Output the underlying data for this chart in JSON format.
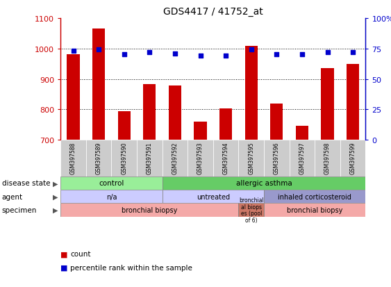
{
  "title": "GDS4417 / 41752_at",
  "samples": [
    "GSM397588",
    "GSM397589",
    "GSM397590",
    "GSM397591",
    "GSM397592",
    "GSM397593",
    "GSM397594",
    "GSM397595",
    "GSM397596",
    "GSM397597",
    "GSM397598",
    "GSM397599"
  ],
  "counts": [
    980,
    1065,
    795,
    882,
    878,
    760,
    804,
    1008,
    818,
    746,
    935,
    950
  ],
  "percentiles": [
    73,
    74,
    70,
    72,
    71,
    69,
    69,
    74,
    70,
    70,
    72,
    72
  ],
  "ylim_left": [
    700,
    1100
  ],
  "ylim_right": [
    0,
    100
  ],
  "yticks_left": [
    700,
    800,
    900,
    1000,
    1100
  ],
  "yticks_right": [
    0,
    25,
    50,
    75,
    100
  ],
  "bar_color": "#cc0000",
  "dot_color": "#0000cc",
  "background_color": "#ffffff",
  "disease_state_colors": [
    "#99ee99",
    "#66cc66"
  ],
  "agent_colors": [
    "#ccccff",
    "#ccccff",
    "#9999cc"
  ],
  "specimen_colors": [
    "#f4a9a8",
    "#cc7766",
    "#f4a9a8"
  ],
  "xtick_bg": "#cccccc",
  "row_label_color": "#555555",
  "legend_count_color": "#cc0000",
  "legend_pct_color": "#0000cc"
}
